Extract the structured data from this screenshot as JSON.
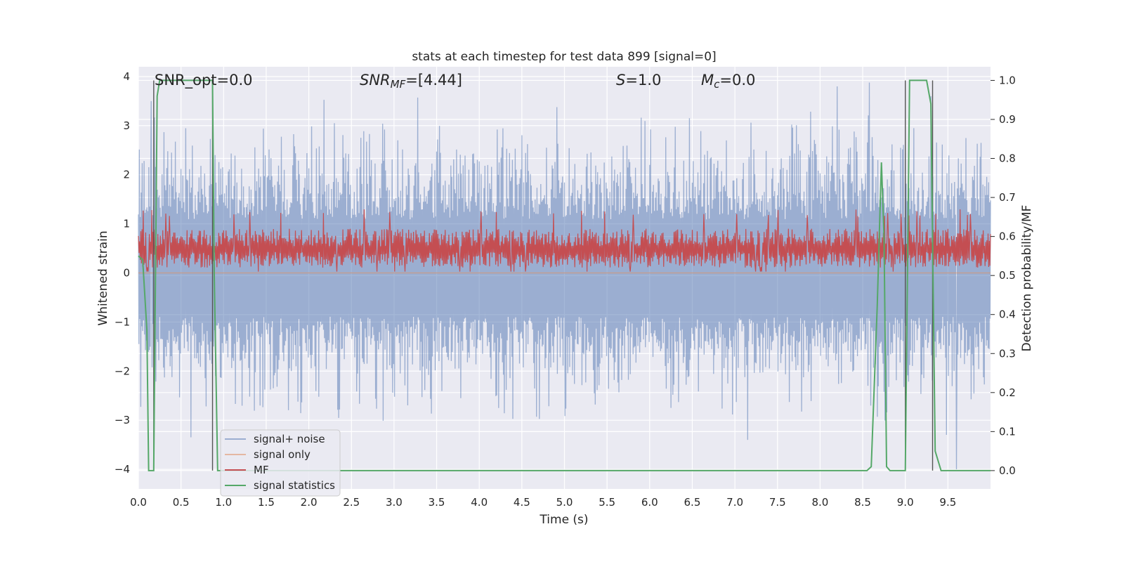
{
  "chart_data": {
    "type": "line",
    "title": "stats at each timestep for test data 899 [signal=0]",
    "xlabel": "Time (s)",
    "ylabel": "Whitened strain",
    "y2label": "Detection probability/MF",
    "xlim": [
      0.0,
      10.0
    ],
    "ylim": [
      -4.4,
      4.2
    ],
    "y2lim": [
      -0.047,
      1.035
    ],
    "xticks": [
      0.0,
      0.5,
      1.0,
      1.5,
      2.0,
      2.5,
      3.0,
      3.5,
      4.0,
      4.5,
      5.0,
      5.5,
      6.0,
      6.5,
      7.0,
      7.5,
      8.0,
      8.5,
      9.0,
      9.5
    ],
    "xtick_labels": [
      "0.0",
      "0.5",
      "1.0",
      "1.5",
      "2.0",
      "2.5",
      "3.0",
      "3.5",
      "4.0",
      "4.5",
      "5.0",
      "5.5",
      "6.0",
      "6.5",
      "7.0",
      "7.5",
      "8.0",
      "8.5",
      "9.0",
      "9.5"
    ],
    "yticks": [
      -4,
      -3,
      -2,
      -1,
      0,
      1,
      2,
      3,
      4
    ],
    "ytick_labels": [
      "−4",
      "−3",
      "−2",
      "−1",
      "0",
      "1",
      "2",
      "3",
      "4"
    ],
    "y2ticks": [
      0.0,
      0.1,
      0.2,
      0.3,
      0.4,
      0.5,
      0.6,
      0.7,
      0.8,
      0.9,
      1.0
    ],
    "y2tick_labels": [
      "0.0",
      "0.1",
      "0.2",
      "0.3",
      "0.4",
      "0.5",
      "0.6",
      "0.7",
      "0.8",
      "0.9",
      "1.0"
    ],
    "grid": true,
    "legend_position": "lower-left",
    "annotations": {
      "snr_opt": "SNR_opt=0.0",
      "snr_mf_sym": "SNR",
      "snr_mf_sub": "MF",
      "snr_mf_rest": "=[4.44]",
      "s_sym": "S",
      "s_rest": "=1.0",
      "mc_sym": "M",
      "mc_sub": "c",
      "mc_rest": "=0.0"
    },
    "series": [
      {
        "name": "signal+ noise",
        "axis": "left",
        "color": "#4c72b0",
        "style": "noise band",
        "typical_range": [
          -1.7,
          1.9
        ],
        "extremes_x": [
          0.15,
          0.9,
          2.3,
          7.15,
          8.2,
          9.3,
          9.6
        ],
        "extremes_y": [
          3.5,
          2.4,
          3.05,
          -3.4,
          3.8,
          3.6,
          -4.0
        ]
      },
      {
        "name": "signal only",
        "axis": "left",
        "color": "#dd8452",
        "style": "line",
        "x": [
          0.0,
          10.0
        ],
        "y": [
          0.0,
          0.0
        ]
      },
      {
        "name": "MF",
        "axis": "right",
        "color": "#c44e52",
        "style": "noise band",
        "typical_range": [
          0.52,
          0.62
        ],
        "peak_range": [
          0.51,
          0.67
        ]
      },
      {
        "name": "signal statistics",
        "axis": "right",
        "color": "#55a868",
        "style": "line",
        "x": [
          0.0,
          0.05,
          0.1,
          0.12,
          0.18,
          0.22,
          0.25,
          0.3,
          0.5,
          0.7,
          0.85,
          0.87,
          0.89,
          0.93,
          1.0,
          2.0,
          4.0,
          6.0,
          8.0,
          8.55,
          8.6,
          8.67,
          8.72,
          8.75,
          8.78,
          8.82,
          8.88,
          9.0,
          9.05,
          9.1,
          9.2,
          9.25,
          9.3,
          9.35,
          9.42,
          9.45,
          9.5,
          10.0
        ],
        "y": [
          0.55,
          0.54,
          0.36,
          0.0,
          0.0,
          0.96,
          1.0,
          1.0,
          1.0,
          1.0,
          1.0,
          1.0,
          0.5,
          0.0,
          0.0,
          0.0,
          0.0,
          0.0,
          0.0,
          0.0,
          0.01,
          0.42,
          0.79,
          0.6,
          0.01,
          0.0,
          0.0,
          0.0,
          1.0,
          1.0,
          1.0,
          1.0,
          0.94,
          0.05,
          0.0,
          0.0,
          0.0,
          0.0
        ]
      }
    ],
    "vertical_markers_x": [
      0.18,
      0.87,
      9.0,
      9.32
    ]
  }
}
